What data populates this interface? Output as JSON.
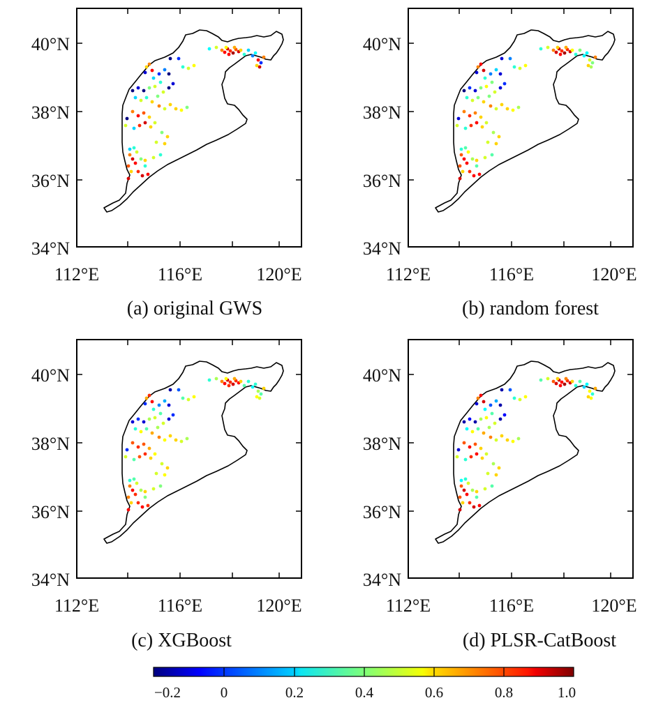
{
  "panels": [
    {
      "caption": "(a) original GWS"
    },
    {
      "caption": "(b) random forest"
    },
    {
      "caption": "(c) XGBoost"
    },
    {
      "caption": "(d) PLSR-CatBoost"
    }
  ],
  "axes": {
    "lat_labels": [
      "40°N",
      "38°N",
      "36°N",
      "34°N"
    ],
    "lon_labels": [
      "112°E",
      "116°E",
      "120°E"
    ]
  },
  "colorbar": {
    "colormap": "jet",
    "range": [
      -0.2,
      1.0
    ],
    "tick_labels": [
      "−0.2",
      "0",
      "0.2",
      "0.4",
      "0.6",
      "0.8",
      "1.0"
    ]
  },
  "colors": {
    "frame": "#000000",
    "coastline": "#000000",
    "background": "#ffffff"
  }
}
